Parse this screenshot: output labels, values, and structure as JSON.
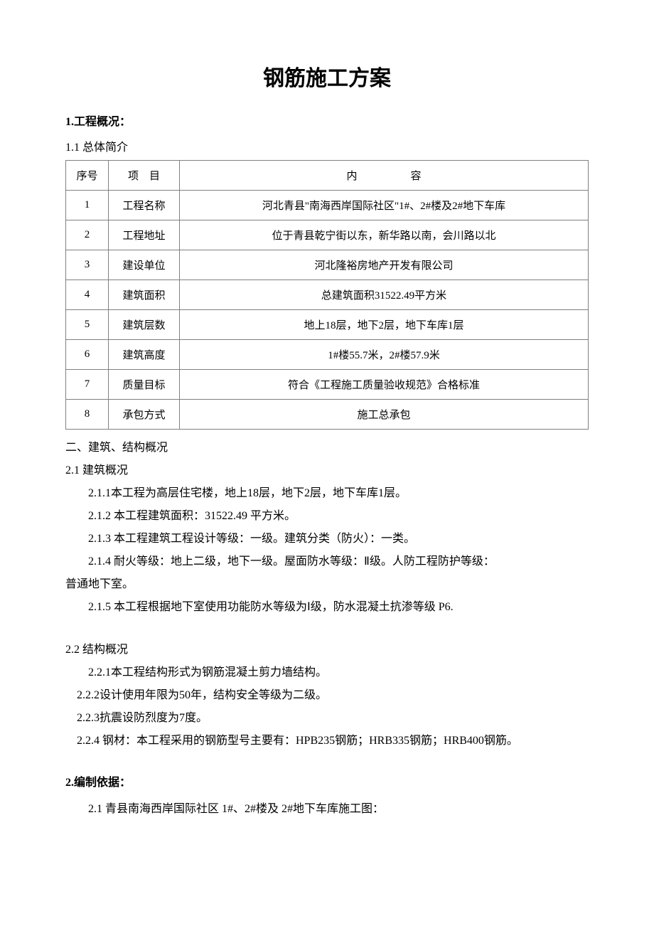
{
  "document": {
    "title": "钢筋施工方案",
    "section1": {
      "heading": "1.工程概况：",
      "sub1_1": "1.1 总体简介"
    },
    "table": {
      "headers": {
        "seq": "序号",
        "item": "项　目",
        "content": "内　　　　　容"
      },
      "rows": [
        {
          "seq": "1",
          "item": "工程名称",
          "content": "河北青县\"南海西岸国际社区\"1#、2#楼及2#地下车库"
        },
        {
          "seq": "2",
          "item": "工程地址",
          "content": "位于青县乾宁街以东，新华路以南，会川路以北"
        },
        {
          "seq": "3",
          "item": "建设单位",
          "content": "河北隆裕房地产开发有限公司"
        },
        {
          "seq": "4",
          "item": "建筑面积",
          "content": "总建筑面积31522.49平方米"
        },
        {
          "seq": "5",
          "item": "建筑层数",
          "content": "地上18层，地下2层，地下车库1层"
        },
        {
          "seq": "6",
          "item": "建筑高度",
          "content": "1#楼55.7米，2#楼57.9米"
        },
        {
          "seq": "7",
          "item": "质量目标",
          "content": "符合《工程施工质量验收规范》合格标准"
        },
        {
          "seq": "8",
          "item": "承包方式",
          "content": "施工总承包"
        }
      ]
    },
    "section2": {
      "heading": "二、建筑、结构概况",
      "sub2_1": "2.1 建筑概况",
      "p211": "2.1.1本工程为高层住宅楼，地上18层，地下2层，地下车库1层。",
      "p212": "2.1.2 本工程建筑面积：31522.49 平方米。",
      "p213": "2.1.3 本工程建筑工程设计等级：一级。建筑分类（防火）：一类。",
      "p214": "2.1.4 耐火等级：地上二级，地下一级。屋面防水等级：Ⅱ级。人防工程防护等级：普通地下室。",
      "p214_cont": "普通地下室。",
      "p214_first": "2.1.4 耐火等级：地上二级，地下一级。屋面防水等级：Ⅱ级。人防工程防护等级：",
      "p215": "2.1.5 本工程根据地下室使用功能防水等级为Ⅰ级，防水混凝土抗渗等级 P6."
    },
    "section2_2": {
      "sub2_2": "2.2 结构概况",
      "p221": "2.2.1本工程结构形式为钢筋混凝土剪力墙结构。",
      "p222": "2.2.2设计使用年限为50年，结构安全等级为二级。",
      "p223": "2.2.3抗震设防烈度为7度。",
      "p224": "2.2.4 钢材：本工程采用的钢筋型号主要有：HPB235钢筋；HRB335钢筋；HRB400钢筋。"
    },
    "section_comp": {
      "heading": "2.编制依据：",
      "p21": "2.1 青县南海西岸国际社区 1#、2#楼及 2#地下车库施工图："
    }
  },
  "style": {
    "background_color": "#ffffff",
    "text_color": "#000000",
    "border_color": "#808080",
    "title_fontsize": 30,
    "heading_fontsize": 16,
    "body_fontsize": 16,
    "table_fontsize": 15
  }
}
